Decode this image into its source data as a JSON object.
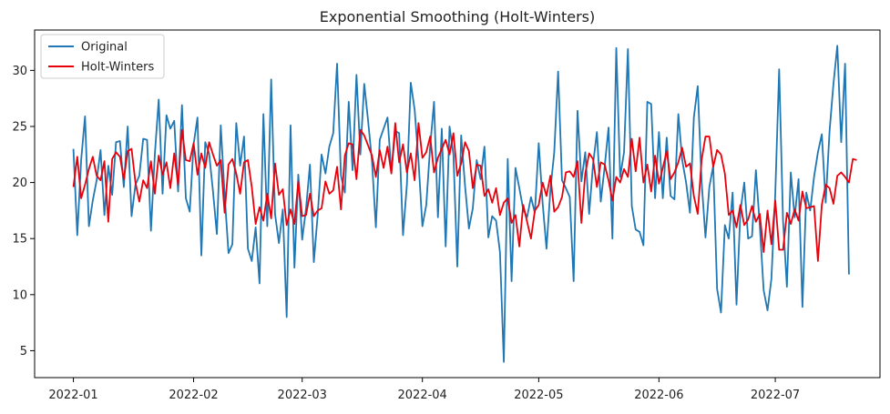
{
  "chart_data": {
    "type": "line",
    "title": "Exponential Smoothing (Holt-Winters)",
    "xlabel": "",
    "ylabel": "",
    "x_start": "2022-01-01",
    "x_tick_labels": [
      "2022-01",
      "2022-02",
      "2022-03",
      "2022-04",
      "2022-05",
      "2022-06",
      "2022-07"
    ],
    "y_ticks": [
      5,
      10,
      15,
      20,
      25,
      30
    ],
    "ylim": [
      2.6,
      33.6
    ],
    "xlim": [
      "2021-12-22",
      "2022-07-28"
    ],
    "grid": false,
    "legend_position": "top-left",
    "series": [
      {
        "name": "Original",
        "color": "#1f77b4",
        "values": [
          23.0,
          15.3,
          22.0,
          25.9,
          16.1,
          18.4,
          20.2,
          22.9,
          17.1,
          21.5,
          18.9,
          23.6,
          23.7,
          19.6,
          25.0,
          17.0,
          19.8,
          20.6,
          23.9,
          23.8,
          15.7,
          22.5,
          27.4,
          19.0,
          26.0,
          24.8,
          25.5,
          19.2,
          26.9,
          18.6,
          17.4,
          23.4,
          25.8,
          13.5,
          23.6,
          22.6,
          19.2,
          15.4,
          25.1,
          18.9,
          13.7,
          14.5,
          25.3,
          21.5,
          24.1,
          14.1,
          13.0,
          16.0,
          11.0,
          26.1,
          16.1,
          29.2,
          17.2,
          14.6,
          17.6,
          8.0,
          25.1,
          12.4,
          20.7,
          14.9,
          17.7,
          21.6,
          12.9,
          17.1,
          22.5,
          20.8,
          23.2,
          24.4,
          30.6,
          20.6,
          19.1,
          27.2,
          21.1,
          29.6,
          22.5,
          28.8,
          25.5,
          21.9,
          16.0,
          23.8,
          24.8,
          25.8,
          20.9,
          24.6,
          24.4,
          15.3,
          19.8,
          28.9,
          26.5,
          21.9,
          16.1,
          18.0,
          23.2,
          27.2,
          16.9,
          24.8,
          14.3,
          25.0,
          22.5,
          12.5,
          24.2,
          19.7,
          15.9,
          17.7,
          22.0,
          20.3,
          23.2,
          15.1,
          17.0,
          16.6,
          13.8,
          4.0,
          22.1,
          11.2,
          21.3,
          19.5,
          17.6,
          16.9,
          18.7,
          17.3,
          23.5,
          18.2,
          14.1,
          19.3,
          22.7,
          29.9,
          20.2,
          19.5,
          18.7,
          11.2,
          26.4,
          20.1,
          22.7,
          17.2,
          21.6,
          24.5,
          18.3,
          21.4,
          24.9,
          15.0,
          32.0,
          20.5,
          22.7,
          31.9,
          17.9,
          15.8,
          15.6,
          14.4,
          27.2,
          27.0,
          18.6,
          24.5,
          18.6,
          24.0,
          18.8,
          18.5,
          26.1,
          22.0,
          20.0,
          17.3,
          25.8,
          28.6,
          20.1,
          15.1,
          19.6,
          21.5,
          10.5,
          8.4,
          16.2,
          15.0,
          19.1,
          9.1,
          17.4,
          20.0,
          15.0,
          15.2,
          21.1,
          16.2,
          10.4,
          8.6,
          11.4,
          19.0,
          30.1,
          16.6,
          10.7,
          20.9,
          16.9,
          20.3,
          8.9,
          19.1,
          17.5,
          20.5,
          22.7,
          24.3,
          18.2,
          24.6,
          28.8,
          32.2,
          23.6,
          30.6,
          11.8
        ]
      },
      {
        "name": "Holt-Winters",
        "color": "#e8000b",
        "values": [
          19.6,
          22.3,
          18.6,
          19.8,
          21.2,
          22.3,
          20.6,
          20.2,
          21.9,
          16.5,
          22.1,
          22.7,
          22.3,
          20.3,
          22.8,
          23.0,
          20.0,
          18.3,
          20.2,
          19.5,
          21.9,
          19.0,
          22.4,
          20.7,
          21.8,
          19.5,
          22.6,
          19.8,
          24.7,
          22.0,
          21.9,
          23.5,
          20.7,
          22.6,
          21.3,
          23.6,
          22.5,
          21.5,
          22.0,
          17.3,
          21.6,
          22.1,
          20.8,
          19.0,
          21.8,
          22.0,
          19.6,
          16.3,
          17.8,
          16.6,
          19.0,
          16.8,
          21.7,
          18.9,
          19.4,
          16.2,
          17.6,
          16.3,
          20.1,
          17.0,
          17.1,
          19.0,
          17.0,
          17.5,
          17.7,
          20.1,
          19.0,
          19.3,
          21.4,
          17.6,
          22.4,
          23.5,
          23.4,
          20.3,
          24.7,
          24.2,
          23.3,
          22.4,
          20.5,
          22.9,
          21.3,
          23.2,
          20.8,
          25.3,
          21.8,
          23.4,
          20.9,
          22.6,
          20.2,
          25.3,
          22.2,
          22.7,
          24.1,
          20.9,
          22.2,
          23.0,
          23.8,
          22.5,
          24.4,
          20.6,
          21.7,
          23.6,
          22.8,
          19.5,
          21.6,
          21.5,
          18.8,
          19.4,
          18.2,
          19.5,
          17.1,
          18.2,
          18.6,
          16.4,
          17.1,
          14.3,
          18.0,
          16.5,
          15.0,
          17.5,
          18.0,
          20.0,
          18.8,
          20.6,
          17.4,
          17.8,
          18.7,
          20.9,
          21.0,
          20.5,
          21.9,
          16.4,
          20.8,
          22.6,
          22.1,
          19.6,
          21.8,
          21.6,
          20.2,
          18.4,
          20.5,
          20.0,
          21.2,
          20.5,
          23.9,
          21.0,
          24.0,
          20.0,
          21.6,
          19.2,
          22.4,
          19.9,
          21.3,
          22.8,
          20.3,
          20.9,
          21.8,
          23.1,
          21.4,
          21.7,
          18.8,
          17.2,
          22.0,
          24.1,
          24.1,
          21.4,
          22.9,
          22.5,
          20.8,
          17.1,
          17.5,
          16.0,
          18.0,
          16.2,
          16.7,
          17.9,
          16.5,
          17.2,
          13.8,
          17.5,
          14.5,
          18.4,
          14.0,
          14.0,
          17.3,
          16.3,
          17.6,
          16.6,
          19.2,
          17.7,
          17.8,
          17.9,
          13.0,
          18.0,
          19.8,
          19.5,
          18.1,
          20.6,
          20.9,
          20.5,
          20.0,
          22.1,
          22.0
        ]
      }
    ]
  }
}
